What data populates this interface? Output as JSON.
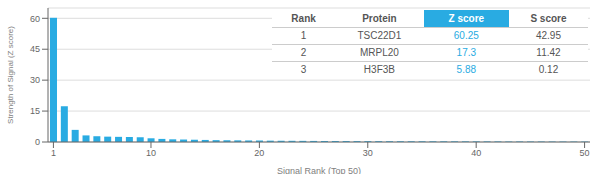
{
  "chart_data": {
    "type": "bar",
    "xlabel": "Signal Rank (Top 50)",
    "ylabel": "Strength of Signal (Z score)",
    "x": [
      1,
      2,
      3,
      4,
      5,
      6,
      7,
      8,
      9,
      10,
      11,
      12,
      13,
      14,
      15,
      16,
      17,
      18,
      19,
      20,
      21,
      22,
      23,
      24,
      25,
      26,
      27,
      28,
      29,
      30,
      31,
      32,
      33,
      34,
      35,
      36,
      37,
      38,
      39,
      40,
      41,
      42,
      43,
      44,
      45,
      46,
      47,
      48,
      49,
      50
    ],
    "values": [
      60.25,
      17.3,
      5.88,
      3.2,
      2.8,
      2.6,
      2.5,
      2.4,
      2.3,
      1.8,
      1.5,
      1.3,
      1.2,
      1.1,
      1.0,
      0.9,
      0.85,
      0.8,
      0.75,
      0.7,
      0.65,
      0.6,
      0.58,
      0.55,
      0.52,
      0.5,
      0.48,
      0.46,
      0.44,
      0.42,
      0.4,
      0.38,
      0.37,
      0.36,
      0.35,
      0.34,
      0.33,
      0.32,
      0.31,
      0.3,
      0.29,
      0.28,
      0.27,
      0.26,
      0.25,
      0.24,
      0.23,
      0.22,
      0.21,
      0.2
    ],
    "color": "#29ABE2",
    "xlim": [
      0.5,
      50.5
    ],
    "xticks": [
      1,
      10,
      20,
      30,
      40,
      50
    ],
    "ylim": [
      0,
      65
    ],
    "yticks": [
      0,
      15,
      30,
      45,
      60
    ],
    "grid": true,
    "table": [
      [
        "Rank",
        "Protein",
        "Z score",
        "S score"
      ],
      [
        "1",
        "TSC22D1",
        "60.25",
        "42.95"
      ],
      [
        "2",
        "MRPL20",
        "17.3",
        "11.42"
      ],
      [
        "3",
        "H3F3B",
        "5.88",
        "0.12"
      ]
    ]
  }
}
